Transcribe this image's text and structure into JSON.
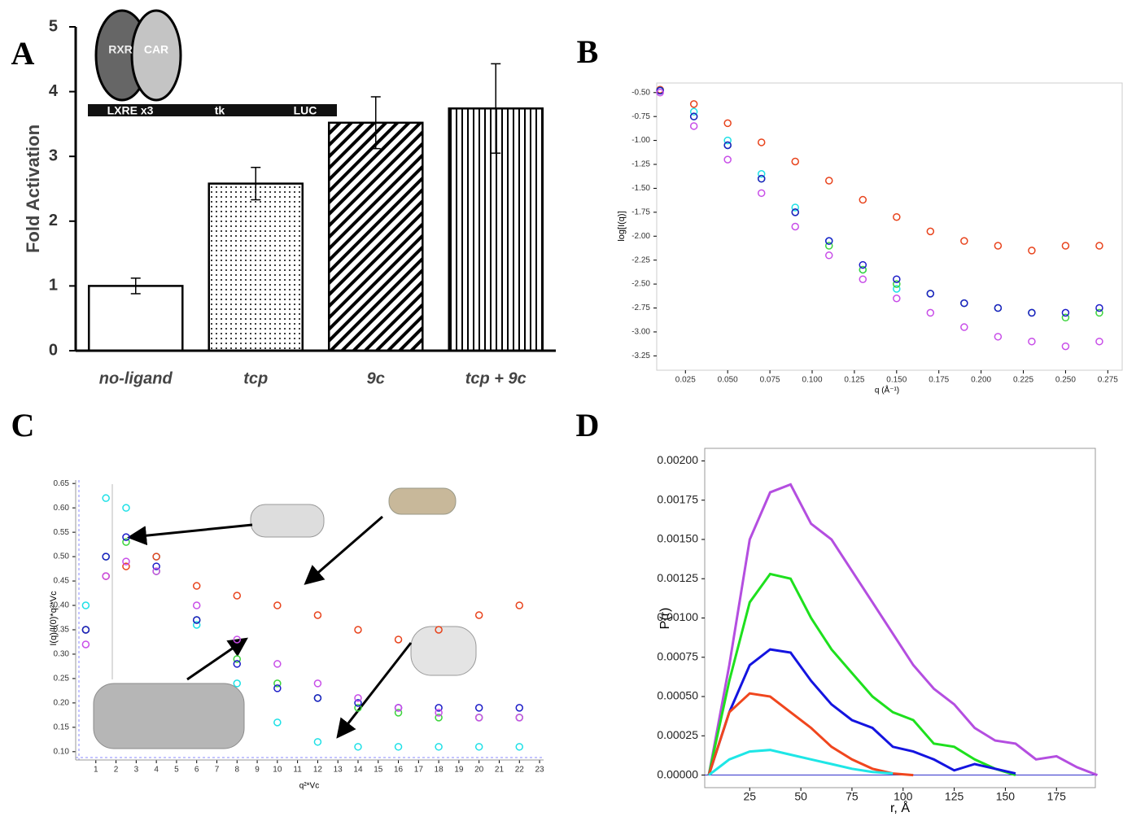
{
  "chart_data": [
    {
      "type": "bar",
      "panel_label": "A",
      "ylabel": "Fold Activation",
      "categories": [
        "no-ligand",
        "tcp",
        "9c",
        "tcp + 9c"
      ],
      "values": [
        1.0,
        2.58,
        3.52,
        3.74
      ],
      "errors": [
        0.12,
        0.25,
        0.4,
        0.69
      ],
      "color": "#000000",
      "ylim": [
        0,
        5
      ],
      "yticks": [
        0,
        1,
        2,
        3,
        4,
        5
      ],
      "annotations": [
        "RXR",
        "CAR",
        "LXRE x3",
        "tk",
        "LUC"
      ]
    },
    {
      "type": "scatter",
      "panel_label": "B",
      "xlabel": "q (Å⁻¹)",
      "ylabel": "log[I(q)]",
      "x": [
        0.01,
        0.03,
        0.05,
        0.07,
        0.09,
        0.11,
        0.13,
        0.15,
        0.17,
        0.19,
        0.21,
        0.23,
        0.25,
        0.27
      ],
      "series": [
        {
          "color": "#e8431c",
          "values": [
            -0.47,
            -0.62,
            -0.82,
            -1.02,
            -1.22,
            -1.42,
            -1.62,
            -1.8,
            -1.95,
            -2.05,
            -2.1,
            -2.15,
            -2.1,
            -2.1
          ]
        },
        {
          "color": "#1ee0e6",
          "values": [
            -0.48,
            -0.7,
            -1.0,
            -1.35,
            -1.7,
            -2.05,
            -2.35,
            -2.55,
            null,
            null,
            null,
            null,
            null,
            null
          ]
        },
        {
          "color": "#3cd43c",
          "values": [
            -0.48,
            -0.75,
            -1.05,
            -1.4,
            -1.75,
            -2.1,
            -2.35,
            -2.5,
            -2.6,
            -2.7,
            -2.75,
            -2.8,
            -2.85,
            -2.8
          ]
        },
        {
          "color": "#1c1cc8",
          "values": [
            -0.48,
            -0.75,
            -1.05,
            -1.4,
            -1.75,
            -2.05,
            -2.3,
            -2.45,
            -2.6,
            -2.7,
            -2.75,
            -2.8,
            -2.8,
            -2.75
          ]
        },
        {
          "color": "#c84ee8",
          "values": [
            -0.5,
            -0.85,
            -1.2,
            -1.55,
            -1.9,
            -2.2,
            -2.45,
            -2.65,
            -2.8,
            -2.95,
            -3.05,
            -3.1,
            -3.15,
            -3.1
          ]
        }
      ],
      "xlim": [
        0.008,
        0.284
      ],
      "ylim": [
        -3.4,
        -0.4
      ],
      "xticks": [
        0.025,
        {
          "value": 0.05,
          "label": "0.050"
        },
        0.075,
        {
          "value": 0.1,
          "label": "0.100"
        },
        0.125,
        {
          "value": 0.15,
          "label": "0.150"
        },
        0.175,
        {
          "value": 0.2,
          "label": "0.200"
        },
        0.225,
        {
          "value": 0.25,
          "label": "0.250"
        },
        0.275
      ],
      "yticks": [
        {
          "value": -0.5,
          "label": "-0.50"
        },
        -0.75,
        {
          "value": -1,
          "label": "-1.00"
        },
        -1.25,
        {
          "value": -1.5,
          "label": "-1.50"
        },
        -1.75,
        {
          "value": -2,
          "label": "-2.00"
        },
        -2.25,
        {
          "value": -2.5,
          "label": "-2.50"
        },
        -2.75,
        {
          "value": -3,
          "label": "-3.00"
        },
        -3.25
      ]
    },
    {
      "type": "scatter",
      "panel_label": "C",
      "xlabel": "q²*Vc",
      "ylabel": "I(q)/I(0)*q²*Vc",
      "x": [
        0.5,
        1.5,
        2.5,
        4,
        6,
        8,
        10,
        12,
        14,
        16,
        18,
        20,
        22
      ],
      "series": [
        {
          "color": "#1ee0e6",
          "values": [
            0.4,
            0.62,
            0.6,
            0.5,
            0.36,
            0.24,
            0.16,
            0.12,
            0.11,
            0.11,
            0.11,
            0.11,
            0.11
          ]
        },
        {
          "color": "#e8431c",
          "values": [
            0.35,
            0.46,
            0.48,
            0.5,
            0.44,
            0.42,
            0.4,
            0.38,
            0.35,
            0.33,
            0.35,
            0.38,
            0.4
          ]
        },
        {
          "color": "#3cd43c",
          "values": [
            0.35,
            0.5,
            0.53,
            0.47,
            0.37,
            0.29,
            0.24,
            0.21,
            0.19,
            0.18,
            0.17,
            0.17,
            0.17
          ]
        },
        {
          "color": "#1c1cc8",
          "values": [
            0.35,
            0.5,
            0.54,
            0.48,
            0.37,
            0.28,
            0.23,
            0.21,
            0.2,
            0.19,
            0.19,
            0.19,
            0.19
          ]
        },
        {
          "color": "#c84ee8",
          "values": [
            0.32,
            0.46,
            0.49,
            0.47,
            0.4,
            0.33,
            0.28,
            0.24,
            0.21,
            0.19,
            0.18,
            0.17,
            0.17
          ]
        }
      ],
      "xlim": [
        0,
        23.2
      ],
      "ylim": [
        0.083,
        0.657
      ],
      "xticks": [
        1,
        2,
        3,
        4,
        5,
        6,
        7,
        8,
        9,
        10,
        11,
        12,
        13,
        14,
        15,
        16,
        17,
        18,
        19,
        20,
        21,
        22,
        23
      ],
      "yticks": [
        {
          "value": 0.1,
          "label": "0.10"
        },
        0.15,
        {
          "value": 0.2,
          "label": "0.20"
        },
        0.25,
        {
          "value": 0.3,
          "label": "0.30"
        },
        0.35,
        {
          "value": 0.4,
          "label": "0.40"
        },
        0.45,
        {
          "value": 0.5,
          "label": "0.50"
        },
        0.55,
        {
          "value": 0.6,
          "label": "0.60"
        },
        0.65
      ]
    },
    {
      "type": "line",
      "panel_label": "D",
      "xlabel": "r, Å",
      "ylabel": "P(r)",
      "x": [
        5,
        15,
        25,
        35,
        45,
        55,
        65,
        75,
        85,
        95,
        105,
        115,
        125,
        135,
        145,
        155,
        165,
        175,
        185,
        195
      ],
      "series": [
        {
          "color": "#b44ee0",
          "values": [
            0,
            0.0007,
            0.0015,
            0.0018,
            0.00185,
            0.0016,
            0.0015,
            0.0013,
            0.0011,
            0.0009,
            0.0007,
            0.00055,
            0.00045,
            0.0003,
            0.00022,
            0.0002,
            0.0001,
            0.00012,
            5e-05,
            0
          ]
        },
        {
          "color": "#1ee01e",
          "values": [
            0,
            0.0006,
            0.0011,
            0.00128,
            0.00125,
            0.001,
            0.0008,
            0.00065,
            0.0005,
            0.0004,
            0.00035,
            0.0002,
            0.00018,
            0.0001,
            4e-05,
            0,
            null,
            null,
            null,
            null
          ]
        },
        {
          "color": "#1414e0",
          "values": [
            0,
            0.0004,
            0.0007,
            0.0008,
            0.00078,
            0.0006,
            0.00045,
            0.00035,
            0.0003,
            0.00018,
            0.00015,
            0.0001,
            3e-05,
            7e-05,
            4e-05,
            1e-05,
            null,
            null,
            null,
            null
          ]
        },
        {
          "color": "#f0461e",
          "values": [
            0,
            0.0004,
            0.00052,
            0.0005,
            0.0004,
            0.0003,
            0.00018,
            0.0001,
            4e-05,
            1e-05,
            0,
            null,
            null,
            null,
            null,
            null,
            null,
            null,
            null,
            null
          ]
        },
        {
          "color": "#1ee6e6",
          "values": [
            0,
            0.0001,
            0.00015,
            0.00016,
            0.00013,
            0.0001,
            7e-05,
            4e-05,
            2e-05,
            1e-05,
            null,
            null,
            null,
            null,
            null,
            null,
            null,
            null,
            null,
            null
          ]
        }
      ],
      "xlim": [
        3,
        194
      ],
      "ylim": [
        -8e-05,
        0.00208
      ],
      "xticks": [
        25,
        50,
        75,
        100,
        125,
        150,
        175
      ],
      "yticks": [
        {
          "value": 0,
          "label": "0.00000"
        },
        {
          "value": 0.00025,
          "label": "0.00025"
        },
        {
          "value": 0.0005,
          "label": "0.00050"
        },
        {
          "value": 0.00075,
          "label": "0.00075"
        },
        {
          "value": 0.001,
          "label": "0.00100"
        },
        {
          "value": 0.00125,
          "label": "0.00125"
        },
        {
          "value": 0.0015,
          "label": "0.00150"
        },
        {
          "value": 0.00175,
          "label": "0.00175"
        },
        {
          "value": 0.002,
          "label": "0.00200"
        }
      ]
    }
  ]
}
